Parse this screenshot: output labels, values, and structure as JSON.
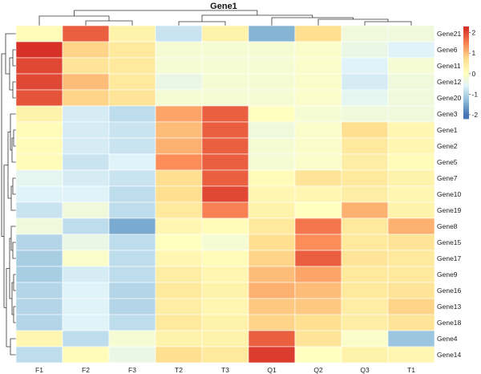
{
  "chart_data": {
    "type": "heatmap",
    "title": "Gene1",
    "columns": [
      "F1",
      "F2",
      "F3",
      "T2",
      "T3",
      "Q1",
      "Q2",
      "Q3",
      "T1"
    ],
    "rows": [
      "Gene21",
      "Gene6",
      "Gene11",
      "Gene12",
      "Gene20",
      "Gene3",
      "Gene1",
      "Gene2",
      "Gene5",
      "Gene7",
      "Gene10",
      "Gene19",
      "Gene8",
      "Gene15",
      "Gene17",
      "Gene9",
      "Gene16",
      "Gene13",
      "Gene18",
      "Gene4",
      "Gene14"
    ],
    "values": [
      [
        0.1,
        1.8,
        0.3,
        -0.8,
        0.3,
        -1.4,
        0.7,
        -0.3,
        -0.3
      ],
      [
        2.2,
        0.8,
        0.5,
        -0.2,
        -0.2,
        -0.2,
        -0.1,
        -0.4,
        -0.6
      ],
      [
        2.0,
        0.6,
        0.5,
        -0.2,
        -0.2,
        -0.2,
        -0.1,
        -0.6,
        -0.2
      ],
      [
        2.0,
        1.0,
        0.5,
        -0.4,
        -0.2,
        -0.2,
        -0.1,
        -0.7,
        -0.3
      ],
      [
        1.9,
        0.8,
        0.6,
        -0.2,
        -0.2,
        -0.2,
        -0.1,
        -0.5,
        -0.3
      ],
      [
        0.3,
        -0.7,
        -0.9,
        1.2,
        1.8,
        0.0,
        -0.2,
        -0.3,
        -0.3
      ],
      [
        0.1,
        -0.7,
        -0.8,
        1.0,
        1.8,
        -0.3,
        -0.1,
        0.7,
        0.2
      ],
      [
        0.1,
        -0.7,
        -0.8,
        1.1,
        1.8,
        -0.2,
        -0.1,
        0.5,
        0.2
      ],
      [
        0.1,
        -0.8,
        -0.6,
        1.4,
        1.8,
        -0.2,
        -0.1,
        0.4,
        0.1
      ],
      [
        -0.5,
        -0.7,
        -0.8,
        0.7,
        1.8,
        0.1,
        0.6,
        0.5,
        0.3
      ],
      [
        -0.6,
        -0.6,
        -0.9,
        0.7,
        2.0,
        0.2,
        0.2,
        0.4,
        0.2
      ],
      [
        -0.8,
        -0.3,
        -0.9,
        0.5,
        1.5,
        0.3,
        0.0,
        1.1,
        0.3
      ],
      [
        -0.3,
        -0.9,
        -1.5,
        0.2,
        0.1,
        0.5,
        1.6,
        0.5,
        1.1
      ],
      [
        -1.0,
        -0.4,
        -0.9,
        0.0,
        -0.2,
        0.7,
        1.4,
        0.5,
        0.6
      ],
      [
        -1.1,
        -0.1,
        -0.9,
        0.2,
        0.1,
        0.8,
        1.8,
        0.6,
        0.5
      ],
      [
        -1.1,
        -0.7,
        -0.9,
        0.4,
        0.2,
        1.0,
        1.2,
        0.5,
        0.5
      ],
      [
        -1.0,
        -0.6,
        -1.0,
        0.5,
        0.3,
        1.1,
        1.0,
        0.5,
        0.6
      ],
      [
        -1.0,
        -0.6,
        -1.0,
        0.4,
        0.2,
        0.9,
        0.9,
        0.4,
        0.8
      ],
      [
        -1.0,
        -0.6,
        -0.9,
        0.5,
        0.3,
        0.8,
        0.7,
        0.4,
        0.6
      ],
      [
        0.2,
        -0.9,
        -0.2,
        0.3,
        0.3,
        1.8,
        0.6,
        -0.1,
        -1.2
      ],
      [
        -0.9,
        0.1,
        -0.4,
        0.7,
        0.5,
        2.1,
        0.0,
        0.3,
        0.2
      ]
    ],
    "legend": {
      "ticks": [
        2,
        1,
        0,
        -1,
        -2
      ],
      "range": [
        -2.2,
        2.3
      ],
      "placement": "right"
    },
    "colors": {
      "low": "#4575b4",
      "mid": "#ffffbf",
      "high": "#d73027"
    },
    "dendrograms": [
      "top",
      "left"
    ],
    "grid": false
  }
}
